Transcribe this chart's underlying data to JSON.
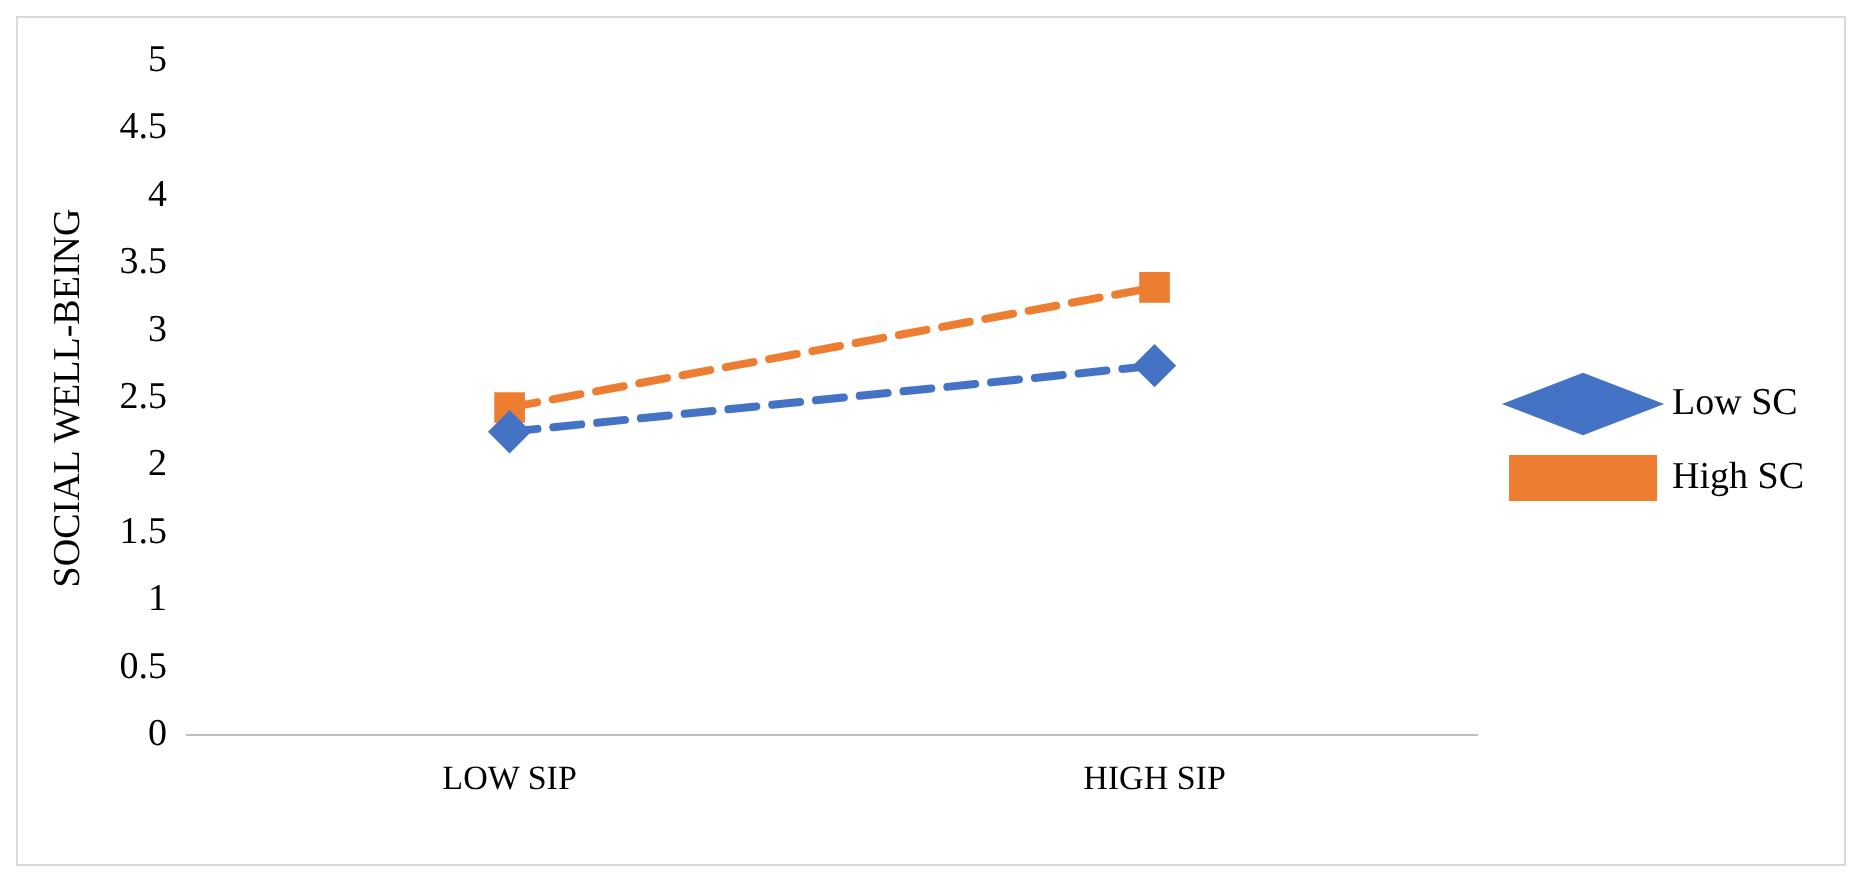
{
  "chart_data": {
    "type": "line",
    "ylabel": "SOCIAL WELL-BEING",
    "categories": [
      "LOW SIP",
      "HIGH SIP"
    ],
    "series": [
      {
        "name": "Low SC",
        "color": "#4472c4",
        "values": [
          2.25,
          2.74
        ],
        "marker": "diamond"
      },
      {
        "name": "High SC",
        "color": "#ed7d31",
        "values": [
          2.43,
          3.32
        ],
        "marker": "square"
      }
    ],
    "ylim": [
      0,
      5
    ],
    "yticks": [
      0,
      0.5,
      1,
      1.5,
      2,
      2.5,
      3,
      3.5,
      4,
      4.5,
      5
    ],
    "grid": false,
    "legend": "right",
    "line_style": "dashed"
  }
}
